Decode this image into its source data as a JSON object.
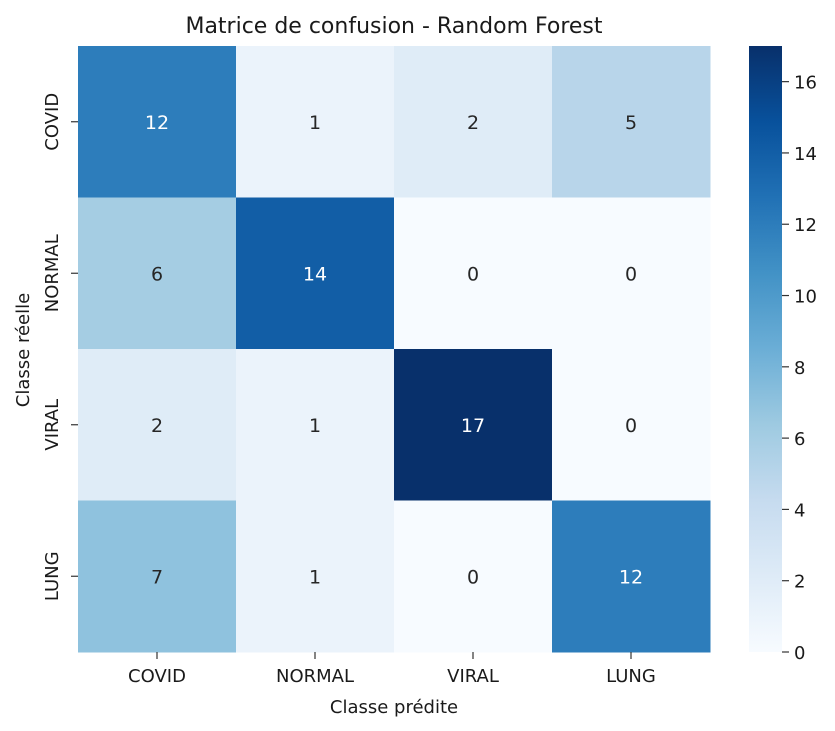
{
  "chart_data": {
    "type": "heatmap",
    "title": "Matrice de confusion - Random Forest",
    "xlabel": "Classe prédite",
    "ylabel": "Classe réelle",
    "x_categories": [
      "COVID",
      "NORMAL",
      "VIRAL",
      "LUNG"
    ],
    "y_categories": [
      "COVID",
      "NORMAL",
      "VIRAL",
      "LUNG"
    ],
    "values": [
      [
        12,
        1,
        2,
        5
      ],
      [
        6,
        14,
        0,
        0
      ],
      [
        2,
        1,
        17,
        0
      ],
      [
        7,
        1,
        0,
        12
      ]
    ],
    "colormap": "Blues",
    "vmin": 0,
    "vmax": 17,
    "colorbar_ticks": [
      0,
      2,
      4,
      6,
      8,
      10,
      12,
      14,
      16
    ],
    "colorbar_tick_labels": [
      "0",
      "2",
      "4",
      "6",
      "8",
      "10",
      "12",
      "14",
      "16"
    ]
  }
}
